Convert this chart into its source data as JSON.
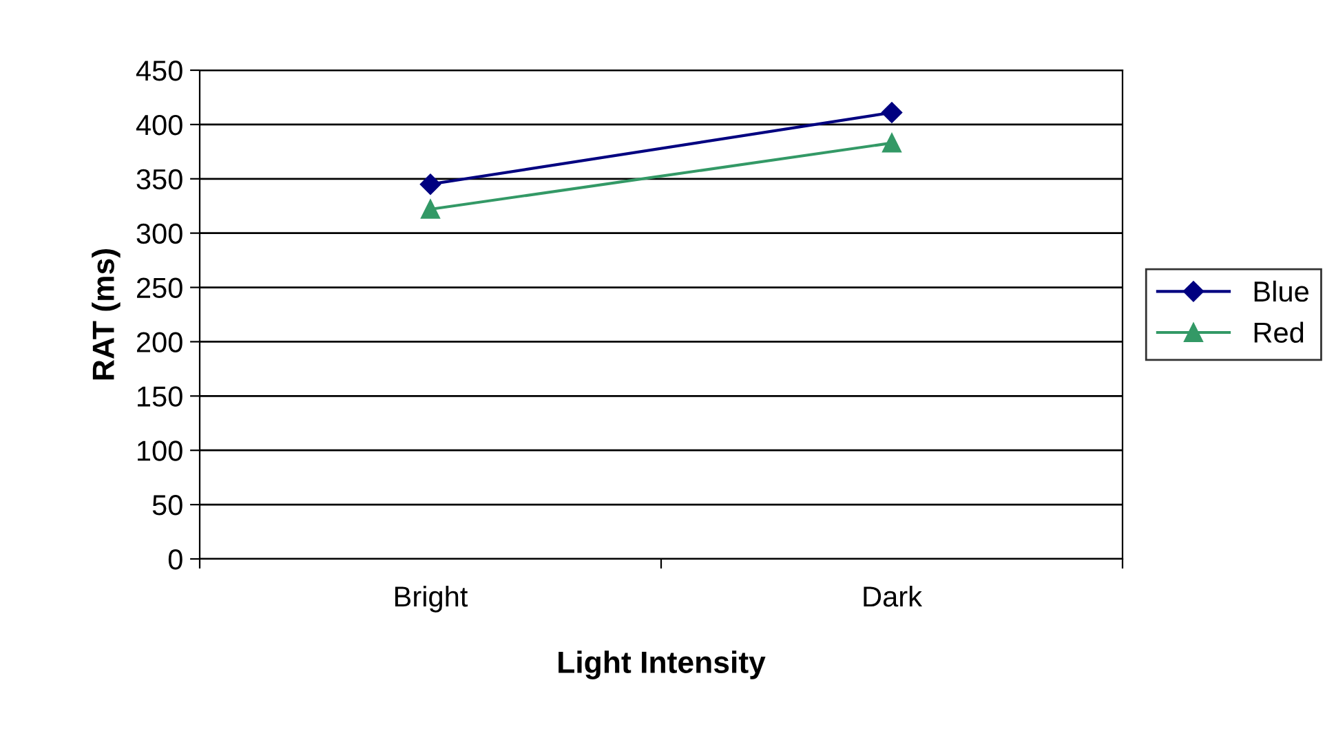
{
  "chart_data": {
    "type": "line",
    "xlabel": "Light Intensity",
    "ylabel": "RAT (ms)",
    "categories": [
      "Bright",
      "Dark"
    ],
    "series": [
      {
        "name": "Blue",
        "color": "#000080",
        "marker": "diamond",
        "values": [
          345,
          411
        ]
      },
      {
        "name": "Red",
        "color": "#339966",
        "marker": "triangle",
        "values": [
          322,
          383
        ]
      }
    ],
    "ylim": [
      0,
      450
    ],
    "yticks": [
      0,
      50,
      100,
      150,
      200,
      250,
      300,
      350,
      400,
      450
    ],
    "grid": "y",
    "legend": "right"
  }
}
